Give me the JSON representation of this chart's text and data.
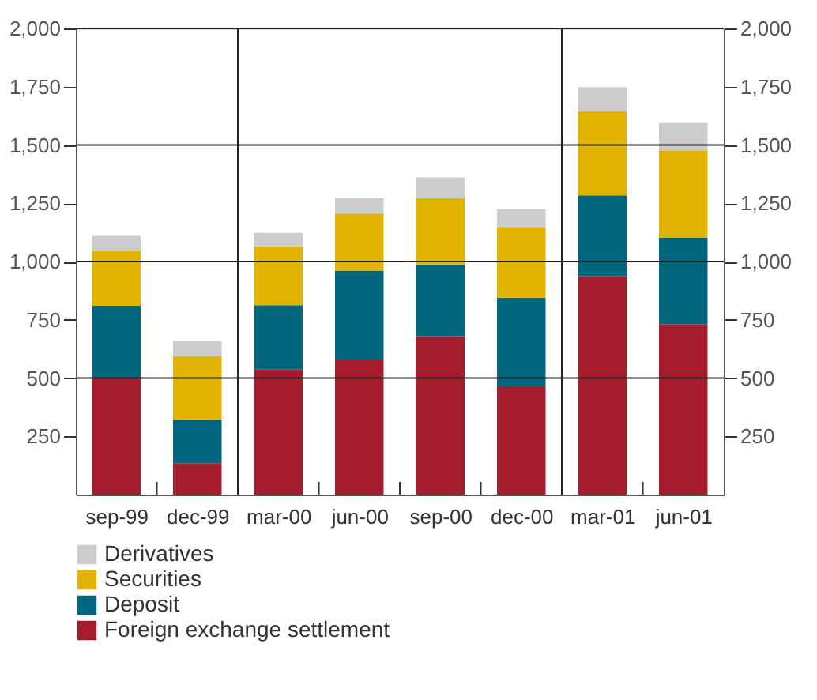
{
  "chart_data": {
    "type": "bar",
    "stacked": true,
    "categories": [
      "sep-99",
      "dec-99",
      "mar-00",
      "jun-00",
      "sep-00",
      "dec-00",
      "mar-01",
      "jun-01"
    ],
    "series": [
      {
        "name": "Foreign exchange settlement",
        "color": "#a51d2d",
        "values": [
          500,
          135,
          538,
          576,
          680,
          465,
          938,
          731
        ]
      },
      {
        "name": "Deposit",
        "color": "#00667e",
        "values": [
          310,
          188,
          275,
          385,
          307,
          380,
          346,
          372
        ]
      },
      {
        "name": "Securities",
        "color": "#e2b300",
        "values": [
          235,
          271,
          252,
          245,
          284,
          303,
          361,
          374
        ]
      },
      {
        "name": "Derivatives",
        "color": "#cccccc",
        "values": [
          65,
          64,
          58,
          65,
          90,
          78,
          103,
          117
        ]
      }
    ],
    "ylim": [
      0,
      2000
    ],
    "yticks": [
      250,
      500,
      750,
      {
        "value": 1000,
        "label": "1,000"
      },
      {
        "value": 1250,
        "label": "1,250"
      },
      {
        "value": 1500,
        "label": "1,500"
      },
      {
        "value": 1750,
        "label": "1,750"
      },
      {
        "value": 2000,
        "label": "2,000"
      }
    ],
    "y2lim": [
      0,
      2000
    ],
    "y2ticks": [
      250,
      500,
      750,
      {
        "value": 1000,
        "label": "1,000"
      },
      {
        "value": 1250,
        "label": "1,250"
      },
      {
        "value": 1500,
        "label": "1,500"
      },
      {
        "value": 1750,
        "label": "1,750"
      },
      {
        "value": 2000,
        "label": "2,000"
      }
    ],
    "grid": true,
    "legend": "bottom left"
  }
}
